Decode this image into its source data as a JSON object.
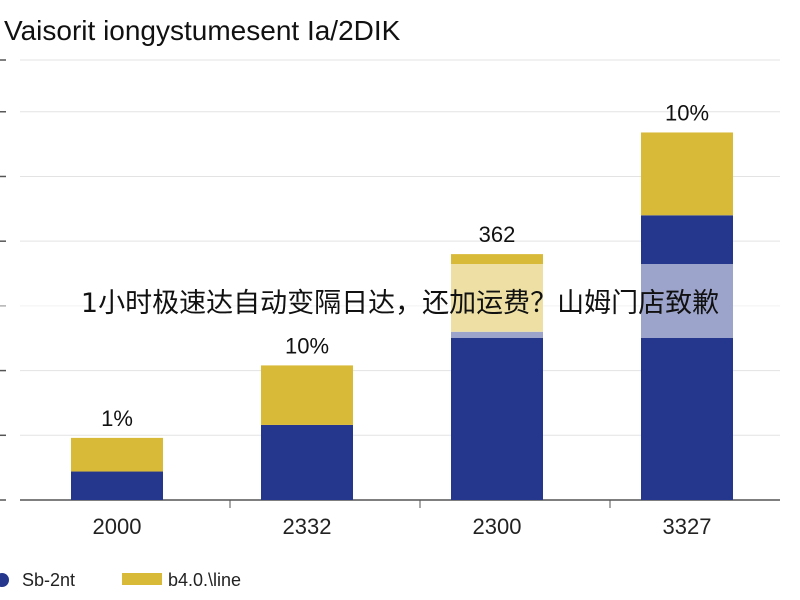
{
  "chart_data": {
    "type": "bar",
    "stacked": true,
    "title": "Vaisorit iongystumesent Ia/2DIK",
    "categories": [
      "2000",
      "2332",
      "2300",
      "3327"
    ],
    "series": [
      {
        "name": "Sb-2nt",
        "values": [
          11,
          29,
          65,
          110
        ]
      },
      {
        "name": "b4.0.\\line",
        "values": [
          13,
          23,
          30,
          32
        ]
      }
    ],
    "data_labels": [
      "1%",
      "10%",
      "362",
      "10%"
    ],
    "ylim": [
      0,
      170
    ],
    "grid": true,
    "legend": "bottom-left",
    "colors": {
      "series0": "#24378c",
      "series1": "#d9ba38",
      "grid": "#e3e3e3",
      "axis": "#555555"
    }
  },
  "overlay_caption": "1小时极速达自动变隔日达，还加运费？山姆门店致歉"
}
